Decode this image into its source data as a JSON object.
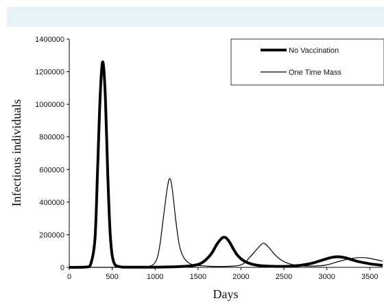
{
  "chart_data": {
    "type": "line",
    "title": "",
    "xlabel": "Days",
    "ylabel": "Infectious individuals",
    "xlim": [
      0,
      3650
    ],
    "ylim": [
      0,
      1400000
    ],
    "x_ticks": [
      0,
      500,
      1000,
      1500,
      2000,
      2500,
      3000,
      3500
    ],
    "y_ticks": [
      0,
      200000,
      400000,
      600000,
      800000,
      1000000,
      1200000,
      1400000
    ],
    "grid": false,
    "legend_position": "top-right",
    "series": [
      {
        "name": "No Vaccination",
        "style": "thick",
        "color": "#000000",
        "points": [
          [
            0,
            0
          ],
          [
            200,
            2000
          ],
          [
            250,
            20000
          ],
          [
            300,
            180000
          ],
          [
            330,
            600000
          ],
          [
            360,
            1050000
          ],
          [
            390,
            1260000
          ],
          [
            420,
            1050000
          ],
          [
            450,
            550000
          ],
          [
            480,
            180000
          ],
          [
            520,
            30000
          ],
          [
            600,
            3000
          ],
          [
            700,
            1000
          ],
          [
            900,
            1000
          ],
          [
            1100,
            2000
          ],
          [
            1300,
            5000
          ],
          [
            1450,
            12000
          ],
          [
            1550,
            30000
          ],
          [
            1650,
            80000
          ],
          [
            1730,
            150000
          ],
          [
            1800,
            185000
          ],
          [
            1860,
            160000
          ],
          [
            1950,
            80000
          ],
          [
            2050,
            35000
          ],
          [
            2200,
            12000
          ],
          [
            2400,
            6000
          ],
          [
            2600,
            8000
          ],
          [
            2800,
            22000
          ],
          [
            2950,
            45000
          ],
          [
            3050,
            60000
          ],
          [
            3130,
            65000
          ],
          [
            3220,
            58000
          ],
          [
            3350,
            38000
          ],
          [
            3500,
            22000
          ],
          [
            3650,
            12000
          ]
        ]
      },
      {
        "name": "One Time Mass",
        "style": "thin",
        "color": "#000000",
        "points": [
          [
            0,
            0
          ],
          [
            700,
            0
          ],
          [
            900,
            3000
          ],
          [
            1000,
            30000
          ],
          [
            1050,
            120000
          ],
          [
            1100,
            320000
          ],
          [
            1140,
            480000
          ],
          [
            1170,
            545000
          ],
          [
            1200,
            480000
          ],
          [
            1250,
            250000
          ],
          [
            1300,
            100000
          ],
          [
            1400,
            25000
          ],
          [
            1600,
            8000
          ],
          [
            1800,
            6000
          ],
          [
            2000,
            15000
          ],
          [
            2100,
            60000
          ],
          [
            2200,
            120000
          ],
          [
            2260,
            148000
          ],
          [
            2320,
            125000
          ],
          [
            2400,
            75000
          ],
          [
            2500,
            35000
          ],
          [
            2650,
            12000
          ],
          [
            2850,
            8000
          ],
          [
            3000,
            15000
          ],
          [
            3150,
            38000
          ],
          [
            3300,
            55000
          ],
          [
            3400,
            60000
          ],
          [
            3500,
            55000
          ],
          [
            3650,
            38000
          ]
        ]
      }
    ]
  }
}
